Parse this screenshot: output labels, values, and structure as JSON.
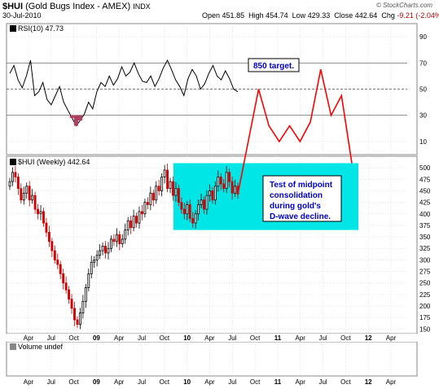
{
  "header": {
    "symbol": "$HUI",
    "name": "(Gold Bugs Index - AMEX)",
    "exchange": "INDX",
    "date": "30-Jul-2010",
    "open_label": "Open",
    "open": "451.85",
    "high_label": "High",
    "high": "454.74",
    "low_label": "Low",
    "low": "429.33",
    "close_label": "Close",
    "close": "442.64",
    "chg_label": "Chg",
    "chg": "-9.21 (-2.04%)",
    "brand": "© StockCharts.com"
  },
  "colors": {
    "up": "#000000",
    "down": "#d40000",
    "box": "#00e5e5",
    "annotation_line": "#ff0000",
    "grid": "#d8d8d8"
  },
  "chart_data": [
    {
      "type": "line",
      "panel": "RSI",
      "label": "RSI(10) 47.73",
      "y_ticks": [
        10,
        30,
        50,
        70,
        90
      ],
      "ylim": [
        0,
        100
      ],
      "reference_lines": [
        30,
        50,
        70
      ],
      "series": [
        {
          "values": [
            62,
            68,
            57,
            51,
            60,
            72,
            45,
            48,
            55,
            42,
            38,
            45,
            52,
            40,
            34,
            28,
            22,
            26,
            31,
            40,
            35,
            48,
            55,
            52,
            60,
            53,
            58,
            67,
            60,
            63,
            70,
            62,
            56,
            55,
            60,
            52,
            58,
            66,
            72,
            65,
            57,
            52,
            45,
            58,
            65,
            60,
            50,
            54,
            62,
            68,
            60,
            57,
            64,
            58,
            50,
            48
          ]
        }
      ],
      "annotation_path_rsi": [
        50,
        50,
        50,
        22,
        10,
        22,
        10,
        25,
        65,
        30,
        45,
        10
      ],
      "annotation_text": "850 target."
    },
    {
      "type": "candlestick",
      "panel": "Price",
      "label": "$HUI (Weekly) 442.64",
      "y_ticks": [
        150,
        175,
        200,
        225,
        250,
        275,
        300,
        325,
        350,
        375,
        400,
        425,
        450,
        475,
        500
      ],
      "ylim": [
        140,
        525
      ],
      "closes": [
        470,
        490,
        480,
        455,
        430,
        445,
        460,
        430,
        440,
        410,
        400,
        405,
        380,
        360,
        340,
        320,
        300,
        290,
        270,
        250,
        235,
        215,
        195,
        170,
        160,
        185,
        210,
        240,
        270,
        295,
        300,
        310,
        320,
        330,
        315,
        325,
        345,
        340,
        355,
        335,
        345,
        365,
        385,
        370,
        395,
        380,
        405,
        400,
        425,
        420,
        445,
        430,
        460,
        450,
        480,
        495,
        455,
        470,
        440,
        455,
        425,
        410,
        400,
        420,
        390,
        380,
        400,
        420,
        430,
        410,
        440,
        450,
        430,
        460,
        480,
        465,
        455,
        490,
        470,
        445,
        460,
        442.64
      ],
      "box": {
        "price_range": [
          365,
          510
        ]
      },
      "annotation_text": [
        "Test of midpoint",
        "consolidation",
        "during gold's",
        "D-wave decline."
      ]
    },
    {
      "type": "bar",
      "panel": "Volume",
      "label": "Volume undef",
      "x_ticks": [
        "Apr",
        "Jul",
        "Oct",
        "09",
        "Apr",
        "Jul",
        "Oct",
        "10",
        "Apr",
        "Jul",
        "Oct",
        "11",
        "Apr",
        "Jul",
        "Oct",
        "12",
        "Apr"
      ]
    }
  ]
}
